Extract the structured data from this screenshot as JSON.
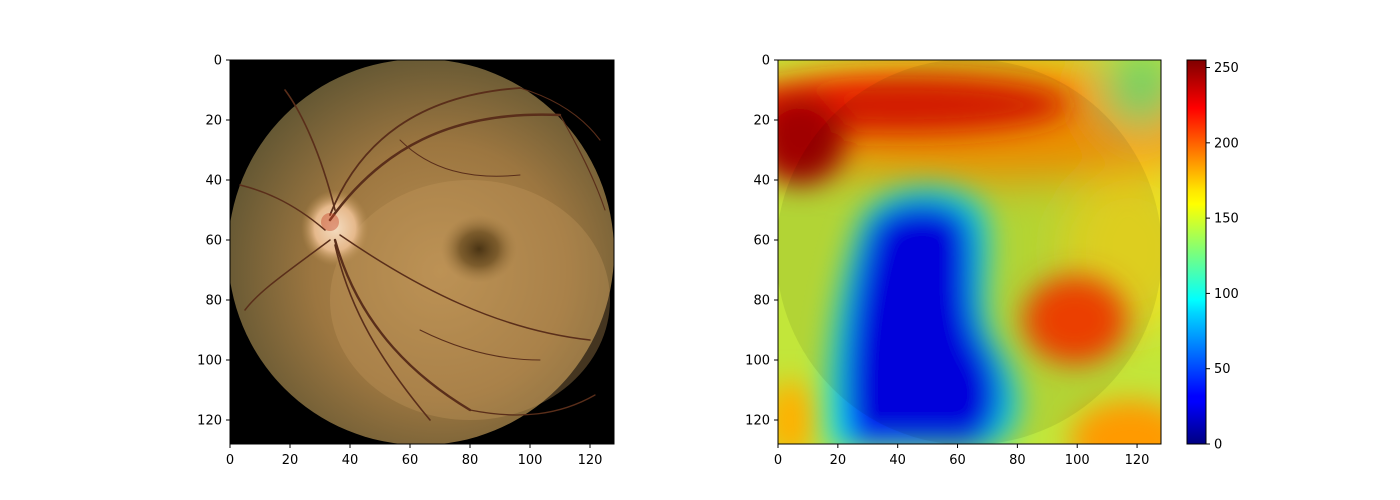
{
  "chart_data": [
    {
      "type": "image",
      "image": "retinal fundus photograph",
      "xlim": [
        0,
        128
      ],
      "ylim": [
        128,
        0
      ],
      "xticks": [
        0,
        20,
        40,
        60,
        80,
        100,
        120
      ],
      "yticks": [
        0,
        20,
        40,
        60,
        80,
        100,
        120
      ],
      "optic_disc": {
        "x": 35,
        "y": 55
      },
      "fovea": {
        "x": 83,
        "y": 63
      },
      "background_color": "#000000"
    },
    {
      "type": "heatmap",
      "colormap": "jet",
      "overlay": "heatmap blended over the fundus photograph",
      "xlim": [
        0,
        128
      ],
      "ylim": [
        128,
        0
      ],
      "xticks": [
        0,
        20,
        40,
        60,
        80,
        100,
        120
      ],
      "yticks": [
        0,
        20,
        40,
        60,
        80,
        100,
        120
      ],
      "colorbar": {
        "range": [
          0,
          255
        ],
        "ticks": [
          0,
          50,
          100,
          150,
          200,
          250
        ]
      },
      "hot_spots": [
        {
          "x": 5,
          "y": 28,
          "value": 250
        },
        {
          "x": 100,
          "y": 88,
          "value": 215
        },
        {
          "x": 60,
          "y": 15,
          "value": 220
        }
      ],
      "cold_region": {
        "x": 40,
        "y": 70,
        "value": 10
      }
    }
  ]
}
